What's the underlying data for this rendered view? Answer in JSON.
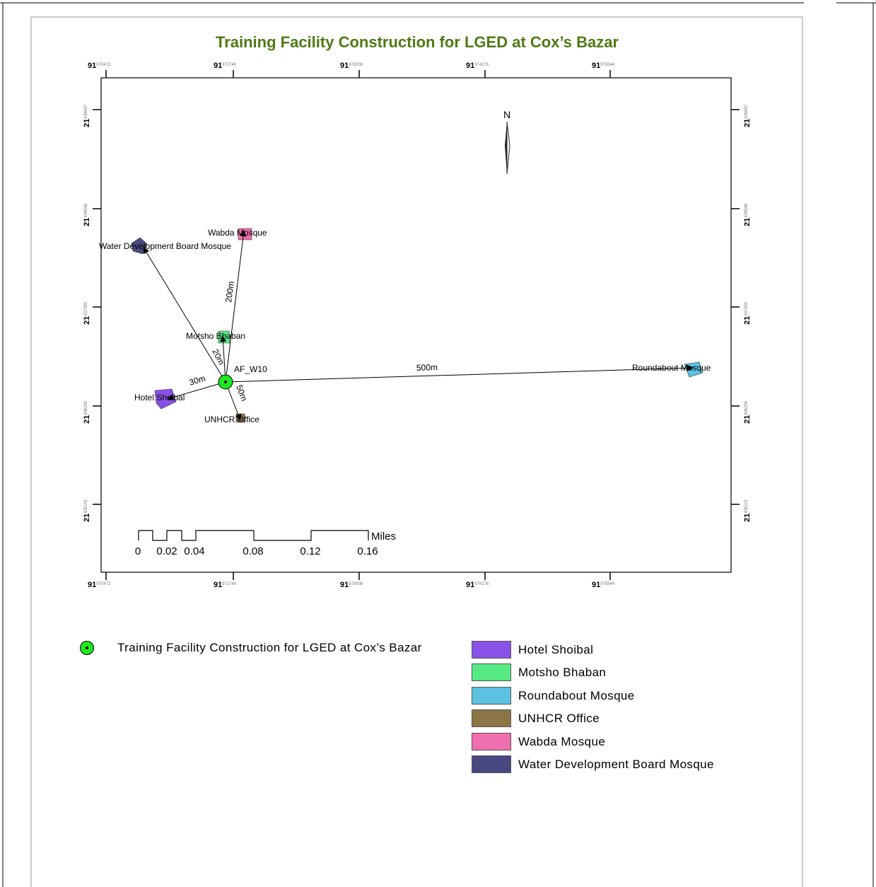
{
  "title": "Training Facility Construction for LGED at Cox’s Bazar",
  "title_color": "#4e7a14",
  "grid": {
    "lon_major": "91",
    "lon_minor": [
      "970472",
      "971740",
      "973008",
      "974276",
      "975544"
    ],
    "lat_major": "21",
    "lat_minor": [
      "439697",
      "438548",
      "437399",
      "436250",
      "435101"
    ]
  },
  "north_arrow": {
    "letter": "N",
    "icon": "north-arrow-icon"
  },
  "features": [
    {
      "id": "af",
      "label": "AF_W10",
      "color": "#1ee81e",
      "kind": "point"
    },
    {
      "id": "hotel",
      "label": "Hotel Shoibal",
      "color": "#8a52e6"
    },
    {
      "id": "motsho",
      "label": "Motsho Bhaban",
      "color": "#55ea84"
    },
    {
      "id": "roundabout",
      "label": "Roundabout Mosque",
      "color": "#5bc2e2"
    },
    {
      "id": "unhcr",
      "label": "UNHCR Office",
      "color": "#8b7446"
    },
    {
      "id": "wabda",
      "label": "Wabda Mosque",
      "color": "#f06fae"
    },
    {
      "id": "wdb",
      "label": "Water Development Board Mosque",
      "color": "#4a4882"
    }
  ],
  "distances": {
    "wdb": "",
    "wabda": "200m",
    "motsho": "20m",
    "hotel": "30m",
    "unhcr": "50m",
    "roundabout": "500m"
  },
  "scale_bar": {
    "unit": "Miles",
    "ticks": [
      "0",
      "0.02",
      "0.04",
      "0.08",
      "0.12",
      "0.16"
    ]
  },
  "legend": {
    "point_label": "Training Facility Construction for LGED at Cox’s Bazar",
    "items": [
      {
        "label": "Hotel Shoibal",
        "color": "#8a52e6"
      },
      {
        "label": "Motsho Bhaban",
        "color": "#55ea84"
      },
      {
        "label": "Roundabout Mosque",
        "color": "#5bc2e2"
      },
      {
        "label": "UNHCR Office",
        "color": "#8b7446"
      },
      {
        "label": "Wabda Mosque",
        "color": "#f06fae"
      },
      {
        "label": "Water Development Board Mosque",
        "color": "#4a4882"
      }
    ]
  }
}
